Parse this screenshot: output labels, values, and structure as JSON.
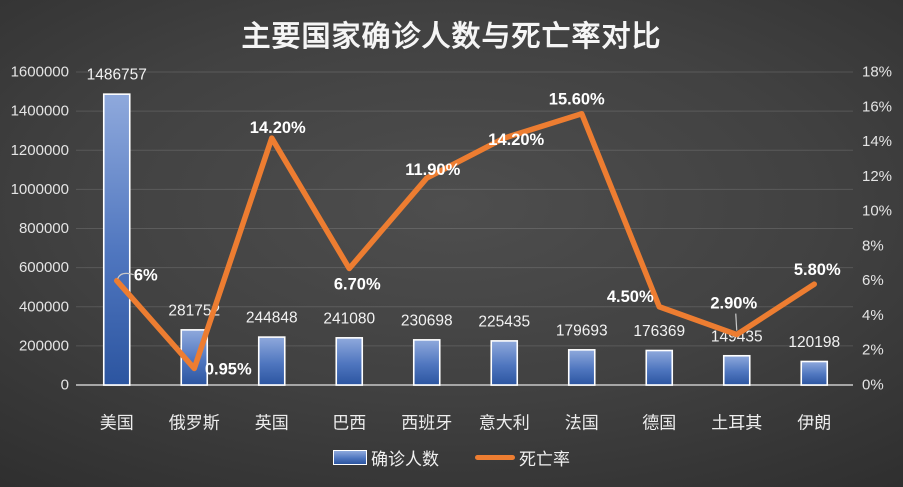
{
  "chart_data": {
    "type": "combo",
    "title": "主要国家确诊人数与死亡率对比",
    "categories": [
      "美国",
      "俄罗斯",
      "英国",
      "巴西",
      "西班牙",
      "意大利",
      "法国",
      "德国",
      "土耳其",
      "伊朗"
    ],
    "series": [
      {
        "name": "确诊人数",
        "type": "bar",
        "axis": "left",
        "values": [
          1486757,
          281752,
          244848,
          241080,
          230698,
          225435,
          179693,
          176369,
          149435,
          120198
        ],
        "labels": [
          "1486757",
          "281752",
          "244848",
          "241080",
          "230698",
          "225435",
          "179693",
          "176369",
          "149435",
          "120198"
        ]
      },
      {
        "name": "死亡率",
        "type": "line",
        "axis": "right",
        "values": [
          6,
          0.95,
          14.2,
          6.7,
          11.9,
          14.2,
          15.6,
          4.5,
          2.9,
          5.8
        ],
        "labels": [
          "6%",
          "0.95%",
          "14.20%",
          "6.70%",
          "11.90%",
          "14.20%",
          "15.60%",
          "4.50%",
          "2.90%",
          "5.80%"
        ]
      }
    ],
    "left_axis": {
      "min": 0,
      "max": 1600000,
      "step": 200000,
      "ticks": [
        "0",
        "200000",
        "400000",
        "600000",
        "800000",
        "1000000",
        "1200000",
        "1400000",
        "1600000"
      ]
    },
    "right_axis": {
      "min": 0,
      "max": 18,
      "step": 2,
      "ticks": [
        "0%",
        "2%",
        "4%",
        "6%",
        "8%",
        "10%",
        "12%",
        "14%",
        "16%",
        "18%"
      ]
    },
    "legend": [
      "确诊人数",
      "死亡率"
    ],
    "legend_position": "bottom",
    "grid": true,
    "colors": {
      "bar_top": "#8fa9dc",
      "bar_mid": "#4f76bf",
      "bar_bottom": "#2c55a0",
      "bar_border": "#ffffff",
      "line": "#ed7d31",
      "grid": "rgba(255,255,255,0.13)",
      "axis_line": "#a6a6a6",
      "text": "#f0f0f0",
      "label_leader": "#c9c9c9"
    }
  }
}
